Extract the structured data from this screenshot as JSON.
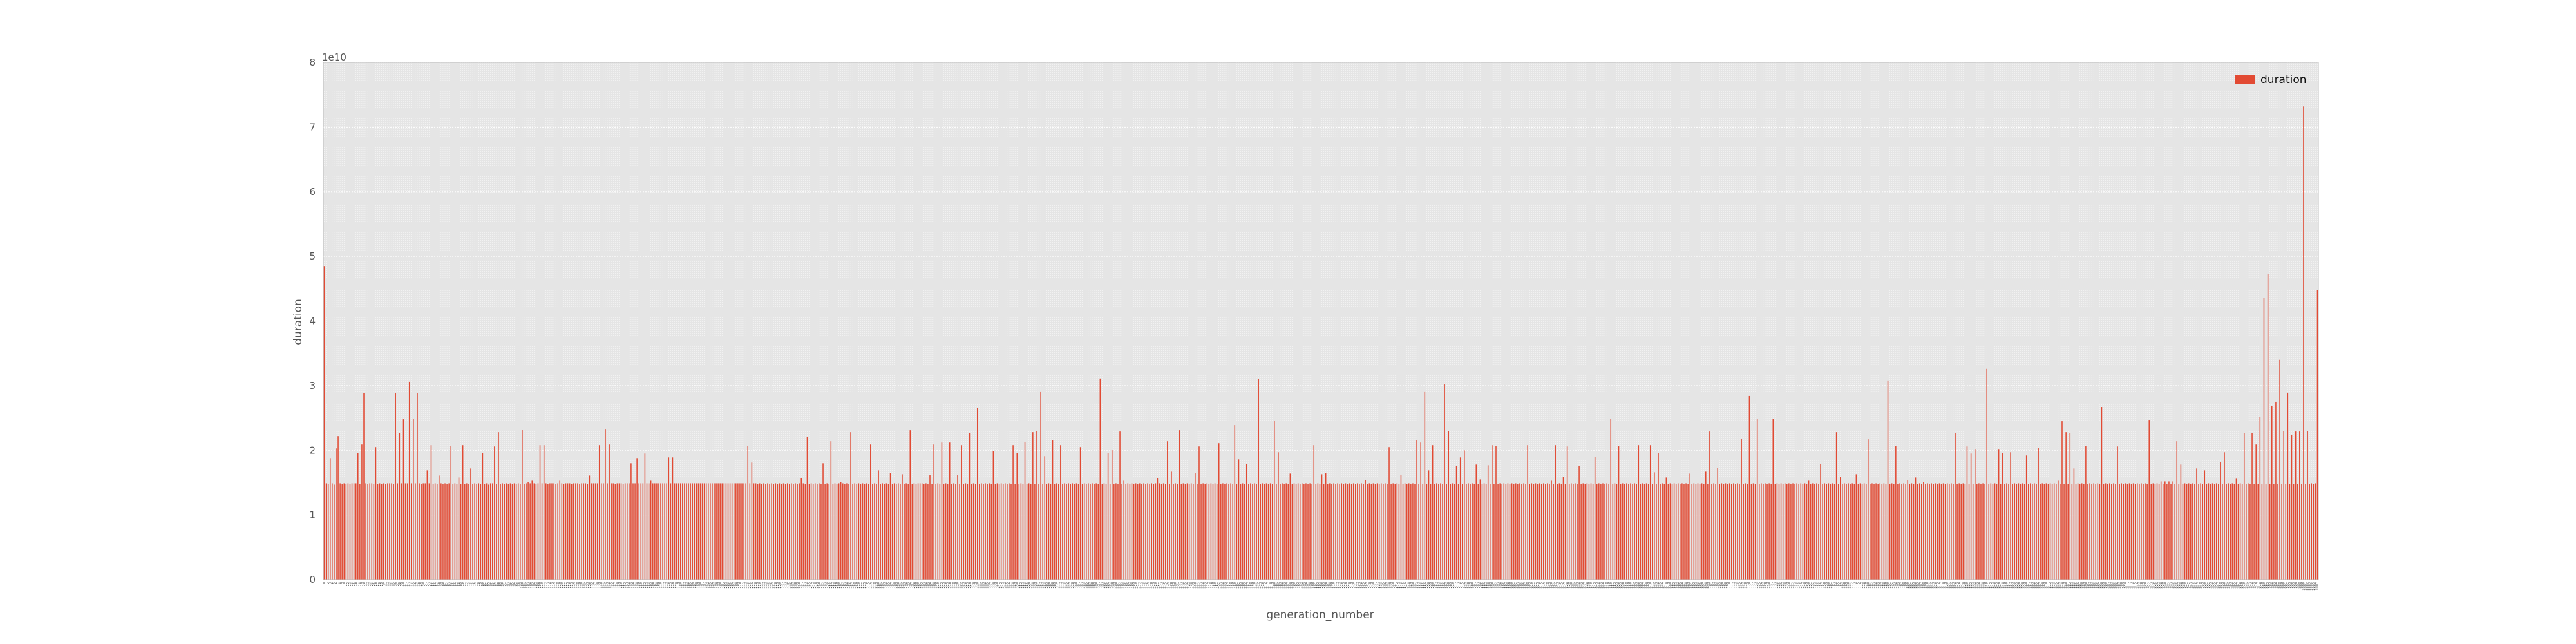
{
  "chart_data": {
    "type": "bar",
    "xlabel": "generation_number",
    "ylabel": "duration",
    "y_offset_label": "1e10",
    "ylim": [
      0,
      8
    ],
    "yticks": [
      "0",
      "1",
      "2",
      "3",
      "4",
      "5",
      "6",
      "7",
      "8"
    ],
    "grid": true,
    "legend_placement": "top-right",
    "series": [
      {
        "name": "duration",
        "color": "#e24a33",
        "values": [
          4.85,
          1.49,
          1.48,
          1.88,
          1.49,
          1.47,
          2.03,
          2.22,
          1.49,
          1.48,
          1.49,
          1.48,
          1.49,
          1.48,
          1.49,
          1.49,
          1.49,
          1.96,
          1.48,
          2.09,
          2.88,
          1.49,
          1.48,
          1.49,
          1.49,
          1.48,
          2.05,
          1.48,
          1.49,
          1.48,
          1.49,
          1.48,
          1.49,
          1.49,
          1.49,
          1.48,
          2.88,
          1.49,
          2.27,
          1.49,
          2.48,
          1.49,
          1.49,
          3.06,
          1.49,
          2.49,
          1.49,
          2.88,
          1.49,
          1.48,
          1.49,
          1.49,
          1.69,
          1.49,
          2.08,
          1.48,
          1.49,
          1.48,
          1.61,
          1.49,
          1.48,
          1.49,
          1.48,
          1.49,
          2.07,
          1.48,
          1.49,
          1.48,
          1.58,
          1.48,
          2.08,
          1.48,
          1.49,
          1.48,
          1.72,
          1.48,
          1.49,
          1.48,
          1.49,
          1.48,
          1.96,
          1.48,
          1.49,
          1.47,
          1.49,
          1.49,
          2.06,
          1.48,
          2.28,
          1.48,
          1.49,
          1.48,
          1.49,
          1.48,
          1.49,
          1.48,
          1.49,
          1.48,
          1.49,
          1.48,
          2.32,
          1.48,
          1.49,
          1.51,
          1.49,
          1.53,
          1.49,
          1.48,
          1.49,
          2.08,
          1.49,
          2.08,
          1.49,
          1.48,
          1.49,
          1.49,
          1.49,
          1.48,
          1.49,
          1.53,
          1.49,
          1.48,
          1.49,
          1.49,
          1.49,
          1.48,
          1.49,
          1.49,
          1.49,
          1.48,
          1.49,
          1.49,
          1.49,
          1.48,
          1.61,
          1.49,
          1.49,
          1.49,
          1.49,
          2.08,
          1.49,
          1.49,
          2.33,
          1.49,
          2.09,
          1.49,
          1.49,
          1.48,
          1.49,
          1.49,
          1.49,
          1.48,
          1.49,
          1.49,
          1.49,
          1.8,
          1.49,
          1.49,
          1.88,
          1.49,
          1.49,
          1.49,
          1.95,
          1.49,
          1.49,
          1.53,
          1.49,
          1.49,
          1.49,
          1.49,
          1.49,
          1.49,
          1.49,
          1.49,
          1.89,
          1.49,
          1.89,
          1.49,
          1.49,
          1.49,
          1.49,
          1.49,
          1.49,
          1.49,
          1.49,
          1.49,
          1.49,
          1.49,
          1.49,
          1.49,
          1.49,
          1.49,
          1.49,
          1.49,
          1.49,
          1.49,
          1.49,
          1.49,
          1.49,
          1.49,
          1.49,
          1.49,
          1.49,
          1.49,
          1.49,
          1.49,
          1.49,
          1.49,
          1.49,
          1.49,
          1.49,
          1.49,
          1.49,
          1.49,
          2.07,
          1.49,
          1.81,
          1.49,
          1.49,
          1.48,
          1.49,
          1.48,
          1.49,
          1.48,
          1.49,
          1.48,
          1.49,
          1.48,
          1.49,
          1.48,
          1.49,
          1.48,
          1.49,
          1.48,
          1.49,
          1.48,
          1.49,
          1.48,
          1.49,
          1.48,
          1.49,
          1.57,
          1.49,
          1.48,
          2.21,
          1.48,
          1.49,
          1.48,
          1.49,
          1.48,
          1.49,
          1.48,
          1.8,
          1.48,
          1.49,
          1.48,
          2.14,
          1.48,
          1.49,
          1.48,
          1.49,
          1.51,
          1.49,
          1.48,
          1.49,
          1.48,
          2.28,
          1.48,
          1.49,
          1.48,
          1.49,
          1.48,
          1.49,
          1.48,
          1.49,
          1.48,
          2.09,
          1.48,
          1.49,
          1.48,
          1.69,
          1.48,
          1.49,
          1.48,
          1.49,
          1.48,
          1.65,
          1.48,
          1.49,
          1.48,
          1.49,
          1.48,
          1.63,
          1.48,
          1.49,
          1.48,
          2.31,
          1.48,
          1.49,
          1.48,
          1.49,
          1.49,
          1.49,
          1.48,
          1.49,
          1.48,
          1.62,
          1.48,
          2.09,
          1.48,
          1.49,
          1.48,
          2.12,
          1.48,
          1.49,
          1.48,
          2.12,
          1.48,
          1.49,
          1.48,
          1.62,
          1.48,
          2.08,
          1.48,
          1.49,
          1.48,
          2.27,
          1.48,
          1.49,
          1.48,
          2.66,
          1.48,
          1.49,
          1.48,
          1.49,
          1.48,
          1.49,
          1.48,
          1.99,
          1.48,
          1.49,
          1.48,
          1.49,
          1.48,
          1.49,
          1.48,
          1.49,
          1.48,
          2.08,
          1.48,
          1.96,
          1.48,
          1.49,
          1.48,
          2.13,
          1.48,
          1.49,
          1.48,
          2.28,
          1.48,
          2.3,
          1.48,
          2.91,
          1.48,
          1.91,
          1.48,
          1.49,
          1.48,
          2.16,
          1.48,
          1.49,
          1.48,
          2.08,
          1.48,
          1.49,
          1.48,
          1.49,
          1.48,
          1.49,
          1.48,
          1.49,
          1.48,
          2.05,
          1.48,
          1.49,
          1.48,
          1.49,
          1.48,
          1.49,
          1.48,
          1.49,
          1.48,
          3.11,
          1.48,
          1.49,
          1.48,
          1.96,
          1.48,
          2.01,
          1.48,
          1.49,
          1.48,
          2.29,
          1.48,
          1.53,
          1.48,
          1.49,
          1.48,
          1.49,
          1.48,
          1.49,
          1.48,
          1.49,
          1.48,
          1.49,
          1.48,
          1.49,
          1.48,
          1.49,
          1.48,
          1.49,
          1.57,
          1.49,
          1.48,
          1.49,
          1.48,
          2.14,
          1.48,
          1.67,
          1.48,
          1.49,
          1.48,
          2.31,
          1.48,
          1.49,
          1.48,
          1.49,
          1.48,
          1.49,
          1.48,
          1.65,
          1.48,
          2.06,
          1.48,
          1.49,
          1.48,
          1.49,
          1.48,
          1.49,
          1.48,
          1.49,
          1.48,
          2.11,
          1.48,
          1.49,
          1.48,
          1.49,
          1.48,
          1.49,
          1.48,
          2.39,
          1.48,
          1.86,
          1.48,
          1.49,
          1.48,
          1.79,
          1.48,
          1.49,
          1.48,
          1.49,
          1.48,
          3.1,
          1.48,
          1.49,
          1.48,
          1.49,
          1.48,
          1.49,
          1.48,
          2.46,
          1.48,
          1.97,
          1.48,
          1.49,
          1.48,
          1.49,
          1.48,
          1.64,
          1.48,
          1.49,
          1.48,
          1.49,
          1.48,
          1.49,
          1.48,
          1.49,
          1.48,
          1.49,
          1.48,
          2.08,
          1.48,
          1.49,
          1.48,
          1.63,
          1.48,
          1.65,
          1.48,
          1.49,
          1.48,
          1.49,
          1.48,
          1.49,
          1.48,
          1.49,
          1.48,
          1.49,
          1.48,
          1.49,
          1.48,
          1.49,
          1.48,
          1.49,
          1.48,
          1.49,
          1.48,
          1.54,
          1.48,
          1.49,
          1.48,
          1.49,
          1.48,
          1.49,
          1.48,
          1.49,
          1.48,
          1.49,
          1.48,
          2.05,
          1.48,
          1.49,
          1.48,
          1.49,
          1.48,
          1.62,
          1.48,
          1.49,
          1.48,
          1.49,
          1.48,
          1.49,
          1.48,
          2.16,
          1.48,
          2.12,
          1.48,
          2.91,
          1.48,
          1.69,
          1.48,
          2.08,
          1.48,
          1.49,
          1.48,
          1.49,
          1.48,
          3.02,
          1.48,
          2.3,
          1.48,
          1.49,
          1.48,
          1.76,
          1.48,
          1.89,
          1.48,
          2.0,
          1.48,
          1.49,
          1.48,
          1.49,
          1.48,
          1.78,
          1.48,
          1.55,
          1.48,
          1.49,
          1.48,
          1.77,
          1.48,
          2.08,
          1.48,
          2.07,
          1.48,
          1.49,
          1.48,
          1.49,
          1.48,
          1.49,
          1.48,
          1.49,
          1.48,
          1.49,
          1.48,
          1.49,
          1.48,
          1.49,
          1.48,
          2.08,
          1.48,
          1.49,
          1.48,
          1.49,
          1.48,
          1.49,
          1.48,
          1.49,
          1.48,
          1.49,
          1.48,
          1.53,
          1.48,
          2.08,
          1.48,
          1.49,
          1.48,
          1.59,
          1.48,
          2.06,
          1.48,
          1.49,
          1.48,
          1.49,
          1.48,
          1.76,
          1.48,
          1.49,
          1.48,
          1.49,
          1.48,
          1.49,
          1.48,
          1.9,
          1.48,
          1.49,
          1.48,
          1.49,
          1.48,
          1.49,
          1.48,
          2.49,
          1.48,
          1.49,
          1.48,
          2.07,
          1.48,
          1.49,
          1.48,
          1.49,
          1.48,
          1.49,
          1.48,
          1.49,
          1.48,
          2.08,
          1.48,
          1.49,
          1.48,
          1.49,
          1.48,
          2.08,
          1.48,
          1.66,
          1.48,
          1.96,
          1.48,
          1.49,
          1.48,
          1.58,
          1.48,
          1.49,
          1.48,
          1.49,
          1.48,
          1.49,
          1.48,
          1.49,
          1.48,
          1.49,
          1.48,
          1.64,
          1.48,
          1.49,
          1.48,
          1.49,
          1.48,
          1.49,
          1.48,
          1.67,
          1.48,
          2.29,
          1.48,
          1.49,
          1.48,
          1.73,
          1.48,
          1.49,
          1.48,
          1.49,
          1.48,
          1.49,
          1.48,
          1.49,
          1.48,
          1.49,
          1.48,
          2.18,
          1.48,
          1.49,
          1.48,
          2.84,
          1.48,
          1.49,
          1.48,
          2.48,
          1.48,
          1.49,
          1.48,
          1.49,
          1.48,
          1.49,
          1.48,
          2.49,
          1.48,
          1.49,
          1.48,
          1.49,
          1.48,
          1.49,
          1.48,
          1.49,
          1.48,
          1.49,
          1.48,
          1.49,
          1.48,
          1.49,
          1.48,
          1.49,
          1.48,
          1.53,
          1.48,
          1.49,
          1.48,
          1.49,
          1.48,
          1.79,
          1.48,
          1.49,
          1.48,
          1.49,
          1.48,
          1.49,
          1.48,
          2.28,
          1.48,
          1.59,
          1.48,
          1.49,
          1.48,
          1.49,
          1.48,
          1.49,
          1.48,
          1.63,
          1.48,
          1.49,
          1.48,
          1.49,
          1.48,
          2.17,
          1.48,
          1.49,
          1.48,
          1.49,
          1.48,
          1.49,
          1.48,
          1.49,
          1.48,
          3.08,
          1.48,
          1.49,
          1.48,
          2.07,
          1.48,
          1.49,
          1.48,
          1.49,
          1.48,
          1.54,
          1.48,
          1.49,
          1.48,
          1.58,
          1.48,
          1.49,
          1.48,
          1.51,
          1.48,
          1.49,
          1.48,
          1.49,
          1.48,
          1.49,
          1.48,
          1.49,
          1.48,
          1.49,
          1.48,
          1.49,
          1.48,
          1.49,
          1.48,
          2.27,
          1.48,
          1.49,
          1.48,
          1.49,
          1.48,
          2.06,
          1.48,
          1.95,
          1.48,
          2.02,
          1.48,
          1.49,
          1.48,
          1.49,
          1.48,
          3.26,
          1.48,
          1.49,
          1.48,
          1.49,
          1.48,
          2.02,
          1.48,
          1.96,
          1.48,
          1.49,
          1.48,
          1.97,
          1.48,
          1.49,
          1.48,
          1.49,
          1.48,
          1.49,
          1.48,
          1.92,
          1.48,
          1.49,
          1.48,
          1.49,
          1.48,
          2.04,
          1.48,
          1.49,
          1.48,
          1.49,
          1.48,
          1.49,
          1.48,
          1.49,
          1.48,
          1.53,
          1.48,
          2.45,
          1.48,
          2.28,
          1.48,
          2.27,
          1.48,
          1.72,
          1.48,
          1.49,
          1.48,
          1.49,
          1.48,
          2.07,
          1.48,
          1.49,
          1.48,
          1.49,
          1.48,
          1.49,
          1.48,
          2.67,
          1.48,
          1.49,
          1.48,
          1.49,
          1.48,
          1.49,
          1.48,
          2.06,
          1.48,
          1.49,
          1.48,
          1.49,
          1.48,
          1.49,
          1.48,
          1.49,
          1.48,
          1.49,
          1.48,
          1.49,
          1.48,
          1.49,
          1.48,
          2.47,
          1.48,
          1.49,
          1.48,
          1.49,
          1.48,
          1.52,
          1.48,
          1.52,
          1.48,
          1.52,
          1.48,
          1.52,
          1.48,
          2.14,
          1.48,
          1.78,
          1.48,
          1.49,
          1.48,
          1.49,
          1.48,
          1.49,
          1.48,
          1.72,
          1.48,
          1.49,
          1.48,
          1.69,
          1.48,
          1.49,
          1.48,
          1.49,
          1.48,
          1.49,
          1.48,
          1.82,
          1.48,
          1.97,
          1.48,
          1.49,
          1.48,
          1.49,
          1.48,
          1.56,
          1.48,
          1.49,
          1.48,
          2.27,
          1.48,
          1.49,
          1.48,
          2.27,
          1.48,
          2.09,
          1.48,
          2.52,
          1.48,
          4.36,
          1.48,
          4.73,
          1.48,
          2.68,
          1.48,
          2.75,
          1.48,
          3.4,
          1.48,
          2.3,
          1.48,
          2.89,
          1.48,
          2.24,
          1.48,
          2.29,
          1.48,
          2.29,
          1.48,
          7.32,
          1.48,
          2.3,
          1.48,
          1.49,
          1.48,
          1.49,
          4.48
        ]
      }
    ]
  }
}
